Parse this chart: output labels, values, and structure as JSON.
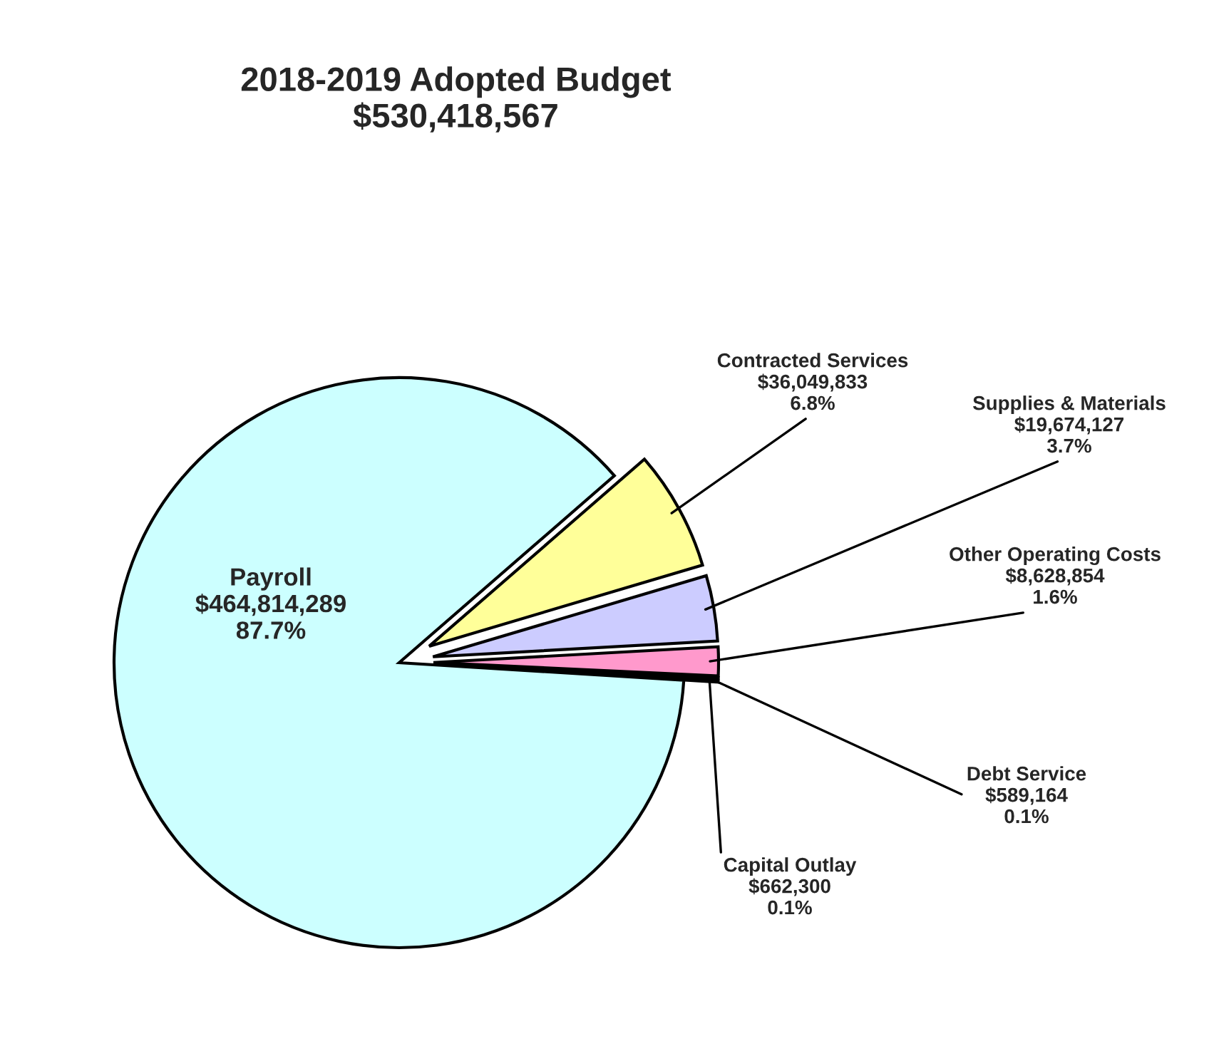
{
  "chart_data": {
    "type": "pie",
    "title": "2018-2019 Adopted Budget\n$530,418,567",
    "categories": [
      "Contracted Services",
      "Supplies & Materials",
      "Other Operating Costs",
      "Debt Service",
      "Capital Outlay",
      "Payroll"
    ],
    "values": [
      36049833,
      19674127,
      8628854,
      589164,
      662300,
      464814289
    ],
    "value_labels": [
      "$36,049,833\n6.8%",
      "$19,674,127\n3.7%",
      "$8,628,854\n1.6%",
      "$589,164\n0.1%",
      "$662,300\n0.1%",
      "$464,814,289\n87.7%"
    ],
    "colors": [
      "#ffff99",
      "#ccccff",
      "#ff99cc",
      "#000000",
      "#000000",
      "#ccffff"
    ],
    "legend": false
  }
}
